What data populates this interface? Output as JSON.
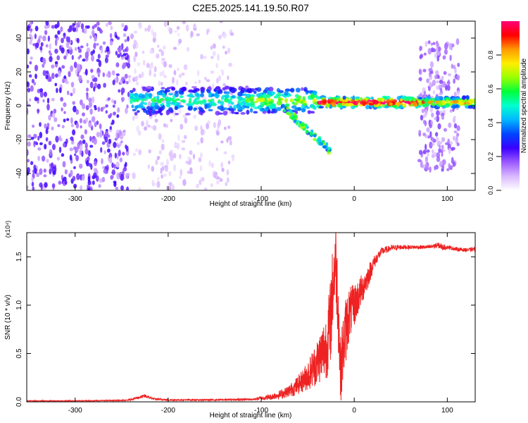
{
  "title": "C2E5.2025.141.19.50.R07",
  "chart_data": [
    {
      "type": "heatmap",
      "xlabel": "Height of straight line (km)",
      "ylabel": "Frequency (Hz)",
      "xlim": [
        -352,
        130
      ],
      "ylim": [
        -50,
        50
      ],
      "xticks": [
        -300,
        -200,
        -100,
        0,
        100
      ],
      "yticks": [
        -40,
        -20,
        0,
        20,
        40
      ],
      "colorbar": {
        "label": "Normalized spectral amplitude",
        "range": [
          0,
          1
        ],
        "ticks": [
          "0.0",
          "0.2",
          "0.4",
          "0.6",
          "0.8"
        ],
        "colors": [
          "#ffffff",
          "#d9b8ff",
          "#9b59ff",
          "#3a00ff",
          "#0044ff",
          "#00b7ff",
          "#00ffd0",
          "#00ff3c",
          "#9aff00",
          "#ffee00",
          "#ff9a00",
          "#ff0000",
          "#ff007a"
        ]
      },
      "regions": [
        {
          "x": [
            -352,
            -242
          ],
          "f_spread": 50,
          "amplitude": 0.2
        },
        {
          "x": [
            -242,
            -130
          ],
          "f_spread": 50,
          "amplitude": 0.08
        },
        {
          "x": [
            -240,
            -115
          ],
          "f_center": 3,
          "f_width": 8,
          "amplitude": 0.4
        },
        {
          "x": [
            -115,
            -40
          ],
          "f_center": 3,
          "f_width": 7,
          "amplitude": 0.5
        },
        {
          "x": [
            -40,
            70
          ],
          "f_center": 2,
          "f_width": 3,
          "amplitude": 0.75
        },
        {
          "x": [
            70,
            112
          ],
          "f_spread": 38,
          "amplitude": 0.15
        },
        {
          "x": [
            70,
            130
          ],
          "f_center": 2,
          "f_width": 3,
          "amplitude": 0.6
        }
      ],
      "branch": {
        "x": [
          -78,
          -25
        ],
        "f": [
          0,
          -27
        ]
      }
    },
    {
      "type": "line",
      "xlabel": "Height of straight line (km)",
      "ylabel": "SNR (10 * v/v)",
      "y_multiplier": "(x10⁴)",
      "xlim": [
        -352,
        130
      ],
      "ylim": [
        0,
        1.75
      ],
      "xticks": [
        -300,
        -200,
        -100,
        0,
        100
      ],
      "yticks": [
        "0.0",
        "0.5",
        "1.0",
        "1.5"
      ],
      "color": "#ee2222",
      "x": [
        -352,
        -300,
        -245,
        -225,
        -215,
        -200,
        -150,
        -110,
        -90,
        -75,
        -65,
        -55,
        -48,
        -42,
        -36,
        -30,
        -26,
        -23,
        -20,
        -17,
        -15,
        -12,
        -9,
        -6,
        -3,
        0,
        5,
        10,
        15,
        20,
        25,
        30,
        40,
        50,
        60,
        70,
        80,
        90,
        95,
        100,
        110,
        120,
        130
      ],
      "values": [
        0.01,
        0.01,
        0.015,
        0.06,
        0.03,
        0.02,
        0.02,
        0.025,
        0.05,
        0.09,
        0.14,
        0.22,
        0.3,
        0.38,
        0.48,
        0.58,
        0.78,
        1.2,
        1.5,
        0.95,
        0.3,
        0.55,
        0.75,
        0.9,
        0.95,
        1.0,
        1.1,
        1.2,
        1.3,
        1.42,
        1.5,
        1.56,
        1.59,
        1.6,
        1.6,
        1.6,
        1.6,
        1.62,
        1.6,
        1.6,
        1.58,
        1.57,
        1.58
      ],
      "noise": [
        0.004,
        0.004,
        0.006,
        0.02,
        0.01,
        0.008,
        0.008,
        0.01,
        0.03,
        0.05,
        0.08,
        0.12,
        0.17,
        0.22,
        0.28,
        0.35,
        0.45,
        0.45,
        0.4,
        0.45,
        0.35,
        0.35,
        0.35,
        0.3,
        0.25,
        0.22,
        0.18,
        0.15,
        0.12,
        0.08,
        0.05,
        0.04,
        0.03,
        0.025,
        0.02,
        0.02,
        0.02,
        0.03,
        0.03,
        0.02,
        0.02,
        0.02,
        0.02
      ]
    }
  ]
}
